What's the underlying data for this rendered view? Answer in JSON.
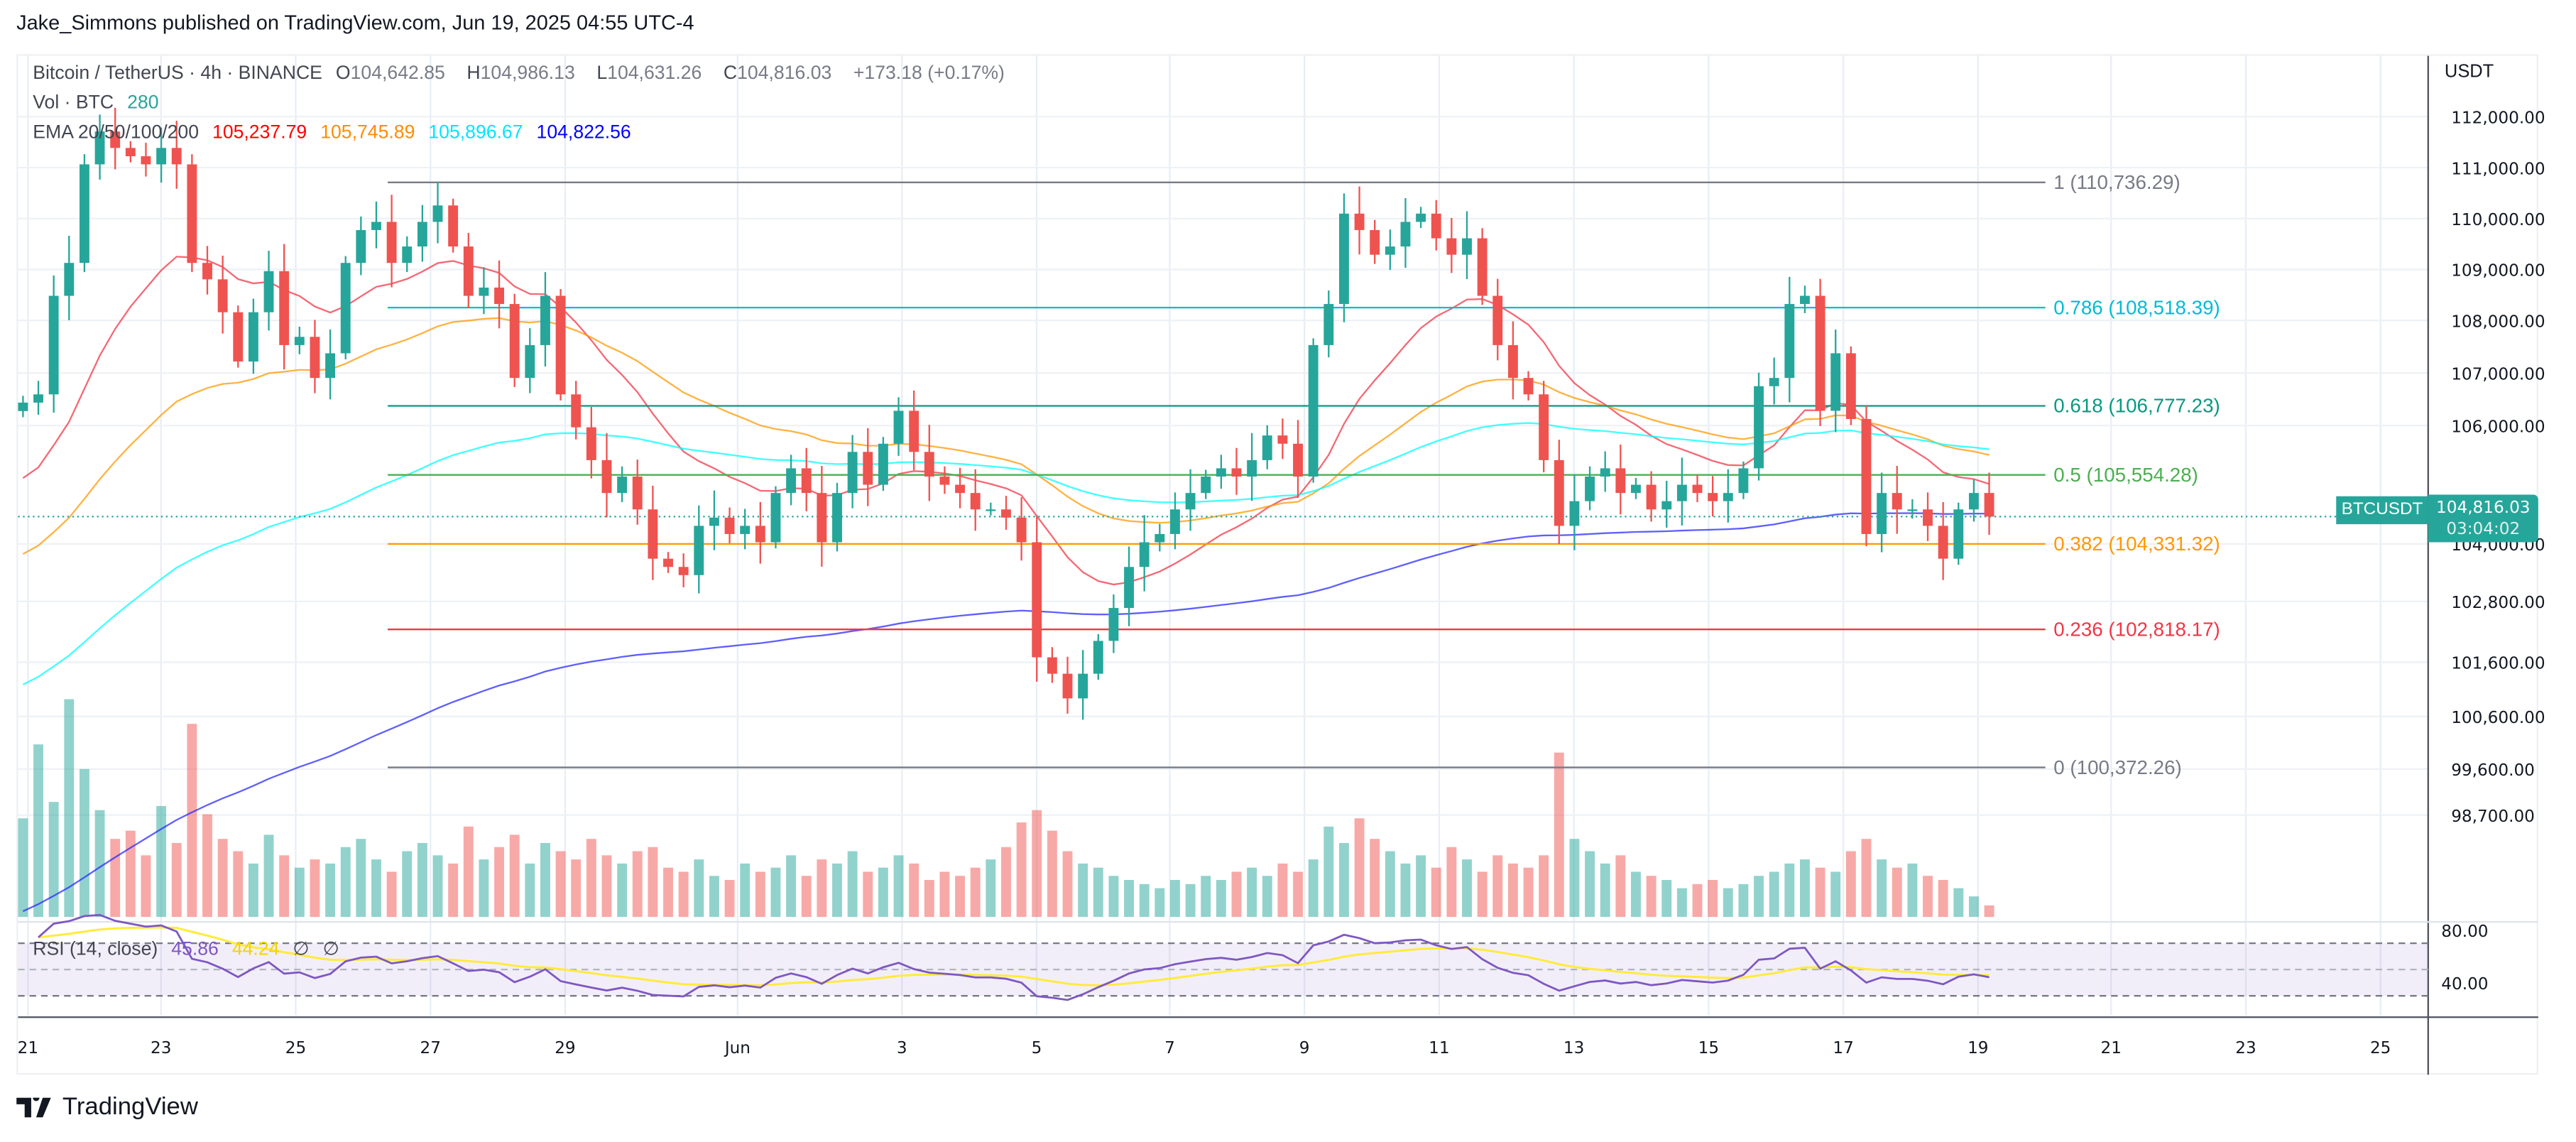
{
  "publisher_line": "Jake_Simmons published on TradingView.com, Jun 19, 2025 04:55 UTC-4",
  "symbol": {
    "name": "Bitcoin / TetherUS · 4h · BINANCE",
    "o_label": "O",
    "o": "104,642.85",
    "h_label": "H",
    "h": "104,986.13",
    "l_label": "L",
    "l": "104,631.26",
    "c_label": "C",
    "c": "104,816.03",
    "change": "+173.18 (+0.17%)"
  },
  "volume_legend": {
    "label": "Vol · BTC",
    "value": "280"
  },
  "ema_legend": {
    "label": "EMA 20/50/100/200",
    "ema20": "105,237.79",
    "ema50": "105,745.89",
    "ema100": "105,896.67",
    "ema200": "104,822.56"
  },
  "rsi_legend": {
    "label": "RSI (14, close)",
    "rsi": "45.86",
    "rsi_ma": "44.24",
    "n1": "∅",
    "n2": "∅"
  },
  "price_axis": {
    "currency": "USDT",
    "ticks": [
      "112,000.00",
      "111,000.00",
      "110,000.00",
      "109,000.00",
      "108,000.00",
      "107,000.00",
      "106,000.00",
      "104,000.00",
      "102,800.00",
      "101,600.00",
      "100,600.00",
      "99,600.00",
      "98,700.00"
    ],
    "rsi_ticks": [
      "80.00",
      "40.00"
    ]
  },
  "current_price": {
    "symbol": "BTCUSDT",
    "price": "104,816.03",
    "countdown": "03:04:02",
    "value": 104816.03
  },
  "time_axis": [
    "21",
    "23",
    "25",
    "27",
    "29",
    "Jun",
    "3",
    "5",
    "7",
    "9",
    "11",
    "13",
    "15",
    "17",
    "19",
    "21",
    "23",
    "25"
  ],
  "colors": {
    "up": "#26a69a",
    "down": "#ef5350",
    "ema20": "#f23645",
    "ema50": "#ff9800",
    "ema100": "#00ffff",
    "ema200": "#2929ff",
    "rsi": "#7e57c2",
    "rsi_ma": "#ffeb3b"
  },
  "logo": "TradingView",
  "chart_data": {
    "type": "candlestick",
    "interval": "4h",
    "fib_levels": [
      {
        "ratio": "1",
        "price": 110736.29,
        "label": "1 (110,736.29)",
        "color": "#787b86"
      },
      {
        "ratio": "0.786",
        "price": 108518.39,
        "label": "0.786 (108,518.39)",
        "color": "#00bcd4"
      },
      {
        "ratio": "0.618",
        "price": 106777.23,
        "label": "0.618 (106,777.23)",
        "color": "#089981"
      },
      {
        "ratio": "0.5",
        "price": 105554.28,
        "label": "0.5 (105,554.28)",
        "color": "#4caf50"
      },
      {
        "ratio": "0.382",
        "price": 104331.32,
        "label": "0.382 (104,331.32)",
        "color": "#ff9800"
      },
      {
        "ratio": "0.236",
        "price": 102818.17,
        "label": "0.236 (102,818.17)",
        "color": "#f23645"
      },
      {
        "ratio": "0",
        "price": 100372.26,
        "label": "0 (100,372.26)",
        "color": "#787b86"
      }
    ],
    "closes": [
      106835,
      106981,
      108727,
      109310,
      111056,
      111638,
      111347,
      111200,
      111056,
      111347,
      111056,
      109310,
      109019,
      108436,
      107563,
      108436,
      109164,
      107854,
      108000,
      107272,
      107709,
      109310,
      109892,
      110037,
      109310,
      109601,
      110037,
      110328,
      109601,
      108727,
      108873,
      108582,
      107272,
      107854,
      108727,
      106981,
      106398,
      105816,
      105234,
      105525,
      104943,
      104070,
      103924,
      103779,
      104652,
      104798,
      104507,
      104652,
      104361,
      105234,
      105671,
      105234,
      104361,
      105234,
      105962,
      105380,
      106107,
      106690,
      105962,
      105525,
      105380,
      105234,
      104943,
      104943,
      104798,
      104361,
      102323,
      102032,
      101595,
      102032,
      102614,
      103197,
      103924,
      104361,
      104507,
      104943,
      105234,
      105525,
      105671,
      105525,
      105816,
      106253,
      106107,
      105525,
      107854,
      108582,
      110183,
      109892,
      109455,
      109601,
      110037,
      110183,
      109746,
      109455,
      109746,
      108727,
      107854,
      107272,
      106981,
      105816,
      104652,
      105089,
      105525,
      105671,
      105234,
      105380,
      104943,
      105089,
      105380,
      105234,
      105089,
      105234,
      105671,
      107126,
      107272,
      108582,
      108727,
      106690,
      107709,
      106544,
      104507,
      105234,
      104943,
      104943,
      104652,
      104070,
      104943,
      105234,
      104816.03
    ],
    "volumes": [
      2400,
      4200,
      2800,
      5300,
      3600,
      2600,
      1900,
      2100,
      1500,
      2700,
      1800,
      4700,
      2500,
      1900,
      1600,
      1300,
      2000,
      1500,
      1200,
      1400,
      1300,
      1700,
      1900,
      1400,
      1100,
      1600,
      1800,
      1500,
      1300,
      2200,
      1400,
      1700,
      2000,
      1300,
      1800,
      1600,
      1400,
      1900,
      1500,
      1300,
      1600,
      1700,
      1200,
      1100,
      1400,
      1000,
      900,
      1300,
      1100,
      1200,
      1500,
      1000,
      1400,
      1300,
      1600,
      1100,
      1200,
      1500,
      1300,
      900,
      1100,
      1000,
      1200,
      1400,
      1700,
      2300,
      2600,
      2100,
      1600,
      1300,
      1200,
      1000,
      900,
      800,
      700,
      900,
      800,
      1000,
      900,
      1100,
      1200,
      1000,
      1300,
      1100,
      1400,
      2200,
      1800,
      2400,
      1900,
      1600,
      1300,
      1500,
      1200,
      1700,
      1400,
      1100,
      1500,
      1300,
      1200,
      1500,
      4000,
      1900,
      1600,
      1300,
      1500,
      1100,
      1000,
      900,
      700,
      800,
      900,
      700,
      800,
      1000,
      1100,
      1300,
      1400,
      1200,
      1100,
      1600,
      1900,
      1400,
      1200,
      1300,
      1000,
      900,
      700,
      500,
      280
    ],
    "rsi_bands": [
      70,
      50,
      30
    ],
    "grid": true
  }
}
